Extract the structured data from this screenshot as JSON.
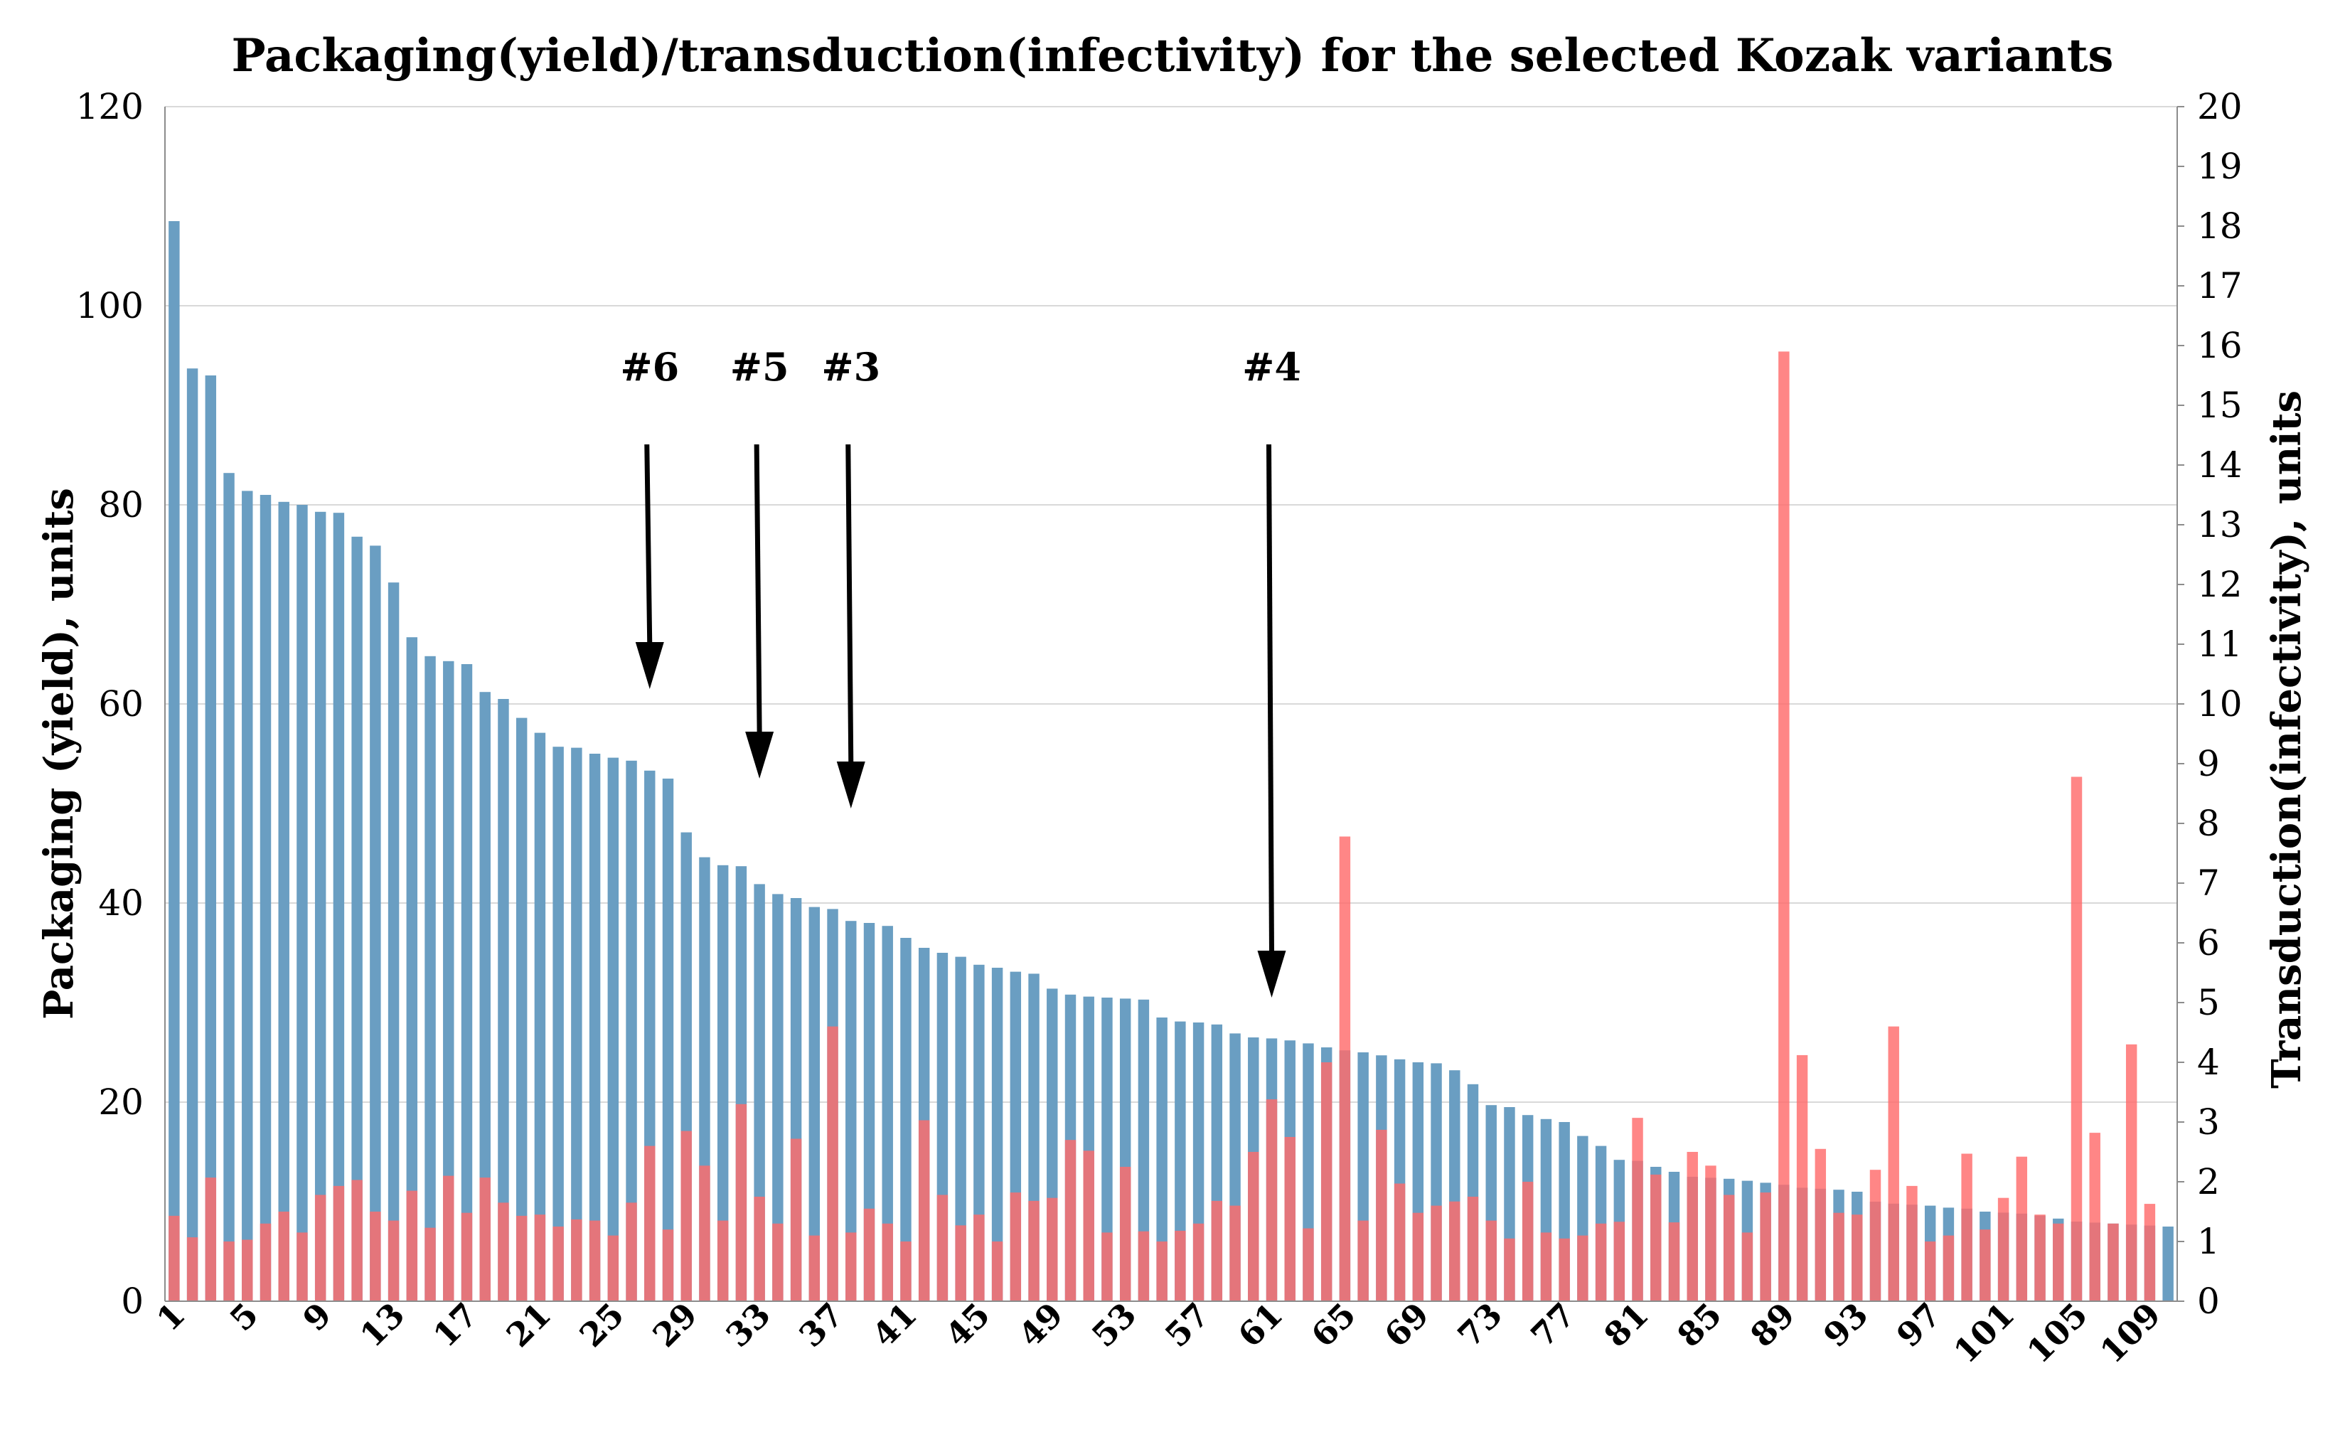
{
  "chart_data": {
    "type": "bar",
    "title": "Packaging(yield)/transduction(infectivity) for the selected Kozak variants",
    "ylabel": "Packaging (yield), units",
    "y2label": "Transduction(infectivity), units",
    "ylim": [
      0,
      120
    ],
    "y2lim": [
      0,
      20
    ],
    "yticks": [
      0,
      20,
      40,
      60,
      80,
      100,
      120
    ],
    "y2ticks": [
      0,
      1,
      2,
      3,
      4,
      5,
      6,
      7,
      8,
      9,
      10,
      11,
      12,
      13,
      14,
      15,
      16,
      17,
      18,
      19,
      20
    ],
    "x_tick_labels": [
      "1",
      "5",
      "9",
      "13",
      "17",
      "21",
      "25",
      "29",
      "33",
      "37",
      "41",
      "45",
      "49",
      "53",
      "57",
      "61",
      "65",
      "69",
      "73",
      "77",
      "81",
      "85",
      "89",
      "93",
      "97",
      "101",
      "105",
      "109"
    ],
    "x_tick_indices": [
      1,
      5,
      9,
      13,
      17,
      21,
      25,
      29,
      33,
      37,
      41,
      45,
      49,
      53,
      57,
      61,
      65,
      69,
      73,
      77,
      81,
      85,
      89,
      93,
      97,
      101,
      105,
      109
    ],
    "grid": true,
    "series": [
      {
        "axis": "left",
        "color": "#6a9ec2",
        "values": [
          108.5,
          93.7,
          93.0,
          83.2,
          81.4,
          81.0,
          80.3,
          80.0,
          79.3,
          79.2,
          76.8,
          75.9,
          72.2,
          66.7,
          64.8,
          64.3,
          64.0,
          61.2,
          60.5,
          58.6,
          57.1,
          55.7,
          55.6,
          55.0,
          54.6,
          54.3,
          53.3,
          52.5,
          47.1,
          44.6,
          43.8,
          43.7,
          41.9,
          40.9,
          40.5,
          39.6,
          39.4,
          38.2,
          38.0,
          37.7,
          36.5,
          35.5,
          35.0,
          34.6,
          33.8,
          33.5,
          33.1,
          32.9,
          31.4,
          30.8,
          30.6,
          30.5,
          30.4,
          30.3,
          28.5,
          28.1,
          28.0,
          27.8,
          26.9,
          26.5,
          26.4,
          26.2,
          25.9,
          25.5,
          25.2,
          25.0,
          24.7,
          24.3,
          24.0,
          23.9,
          23.2,
          21.8,
          19.7,
          19.5,
          18.7,
          18.3,
          18.0,
          16.6,
          15.6,
          14.2,
          14.1,
          13.5,
          13.0,
          12.5,
          12.4,
          12.3,
          12.1,
          11.9,
          11.7,
          11.4,
          11.3,
          11.2,
          11.0,
          10.0,
          9.8,
          9.7,
          9.6,
          9.4,
          9.3,
          9.0,
          8.9,
          8.8,
          8.6,
          8.3,
          8.0,
          7.9,
          7.8,
          7.7,
          7.6,
          7.5
        ]
      },
      {
        "axis": "right",
        "color": "#ff6b6b",
        "values": [
          1.43,
          1.07,
          2.07,
          1.0,
          1.03,
          1.3,
          1.5,
          1.15,
          1.78,
          1.93,
          2.03,
          1.5,
          1.35,
          1.85,
          1.23,
          2.1,
          1.48,
          2.07,
          1.65,
          1.43,
          1.45,
          1.25,
          1.37,
          1.35,
          1.1,
          1.65,
          2.6,
          1.2,
          2.85,
          2.27,
          1.35,
          3.3,
          1.75,
          1.3,
          2.72,
          1.1,
          4.6,
          1.15,
          1.55,
          1.3,
          1.0,
          3.03,
          1.78,
          1.27,
          1.45,
          1.0,
          1.82,
          1.68,
          1.73,
          2.7,
          2.52,
          1.15,
          2.25,
          1.17,
          1.0,
          1.18,
          1.3,
          1.68,
          1.6,
          2.5,
          3.38,
          2.75,
          1.22,
          4.0,
          7.78,
          1.35,
          2.87,
          1.97,
          1.48,
          1.6,
          1.67,
          1.75,
          1.35,
          1.05,
          2.0,
          1.15,
          1.05,
          1.1,
          1.3,
          1.33,
          3.07,
          2.12,
          1.32,
          2.5,
          2.27,
          1.78,
          1.15,
          1.82,
          15.9,
          4.12,
          2.55,
          1.48,
          1.45,
          2.2,
          4.6,
          1.93,
          1.0,
          1.1,
          2.47,
          1.2,
          1.73,
          2.42,
          1.45,
          1.3,
          8.78,
          2.82,
          1.3,
          4.3,
          1.63
        ]
      }
    ],
    "annotations": [
      {
        "label": "#6",
        "index": 27,
        "tip_y": 61.5
      },
      {
        "label": "#5",
        "index": 33,
        "tip_y": 52.5
      },
      {
        "label": "#3",
        "index": 38,
        "tip_y": 49.5
      },
      {
        "label": "#4",
        "index": 61,
        "tip_y": 30.5
      }
    ]
  }
}
